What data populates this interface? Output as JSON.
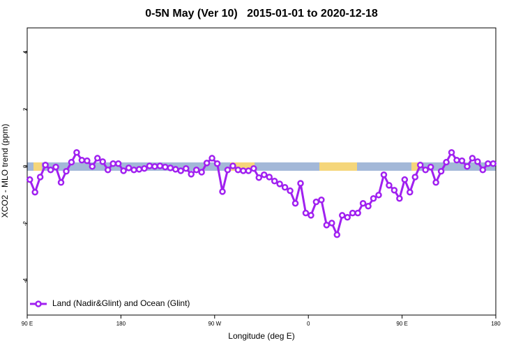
{
  "chart_data": {
    "type": "line",
    "title": "0-5N May (Ver 10)   2015-01-01 to 2020-12-18",
    "xlabel": "Longitude (deg E)",
    "ylabel": "XCO2 - MLO trend (ppm)",
    "xlim": [
      90,
      540
    ],
    "ylim": [
      -5.2,
      4.85
    ],
    "xticks": [
      {
        "value": 90,
        "label": "90 E"
      },
      180,
      {
        "value": 270,
        "label": "90 W"
      },
      {
        "value": 360,
        "label": "0"
      },
      {
        "value": 450,
        "label": "90 E"
      },
      {
        "value": 540,
        "label": "180"
      }
    ],
    "yticks": [
      -4,
      -2,
      0,
      2,
      4
    ],
    "legend": "bottom-left",
    "x": [
      92.5,
      97.5,
      102.5,
      107.5,
      112.5,
      117.5,
      122.5,
      127.5,
      132.5,
      137.5,
      142.5,
      147.5,
      152.5,
      157.5,
      162.5,
      167.5,
      172.5,
      177.5,
      182.5,
      187.5,
      192.5,
      197.5,
      202.5,
      207.5,
      212.5,
      217.5,
      222.5,
      227.5,
      232.5,
      237.5,
      242.5,
      247.5,
      252.5,
      257.5,
      262.5,
      267.5,
      272.5,
      277.5,
      282.5,
      287.5,
      292.5,
      297.5,
      302.5,
      307.5,
      312.5,
      317.5,
      322.5,
      327.5,
      332.5,
      337.5,
      342.5,
      347.5,
      352.5,
      357.5,
      362.5,
      367.5,
      372.5,
      377.5,
      382.5,
      387.5,
      392.5,
      397.5,
      402.5,
      407.5,
      412.5,
      417.5,
      422.5,
      427.5,
      432.5,
      437.5,
      442.5,
      447.5,
      452.5,
      457.5,
      462.5,
      467.5,
      472.5,
      477.5,
      482.5,
      487.5,
      492.5,
      497.5,
      502.5,
      507.5,
      512.5,
      517.5,
      522.5,
      527.5,
      532.5,
      537.5
    ],
    "series": [
      {
        "name": "Land (Nadir&Glint) and Ocean (Glint)",
        "color": "#a020f0",
        "values": [
          -0.46,
          -0.9,
          -0.37,
          0.05,
          -0.12,
          -0.02,
          -0.56,
          -0.17,
          0.15,
          0.49,
          0.22,
          0.2,
          0,
          0.29,
          0.17,
          -0.12,
          0.1,
          0.1,
          -0.15,
          -0.05,
          -0.12,
          -0.1,
          -0.07,
          0.02,
          0,
          0.02,
          -0.02,
          -0.05,
          -0.1,
          -0.15,
          -0.07,
          -0.27,
          -0.12,
          -0.2,
          0.12,
          0.29,
          0.1,
          -0.88,
          -0.12,
          0.02,
          -0.12,
          -0.15,
          -0.15,
          -0.07,
          -0.39,
          -0.29,
          -0.37,
          -0.51,
          -0.61,
          -0.73,
          -0.85,
          -1.29,
          -0.59,
          -1.63,
          -1.71,
          -1.24,
          -1.17,
          -2.05,
          -1.98,
          -2.39,
          -1.71,
          -1.78,
          -1.63,
          -1.63,
          -1.29,
          -1.39,
          -1.12,
          -1.0,
          -0.29,
          -0.66,
          -0.83,
          -1.12,
          -0.46,
          -0.9,
          -0.37,
          0.05,
          -0.12,
          -0.02,
          -0.56,
          -0.17,
          0.15,
          0.49,
          0.22,
          0.2,
          0,
          0.29,
          0.17,
          -0.12,
          0.1,
          0.1
        ]
      }
    ]
  }
}
